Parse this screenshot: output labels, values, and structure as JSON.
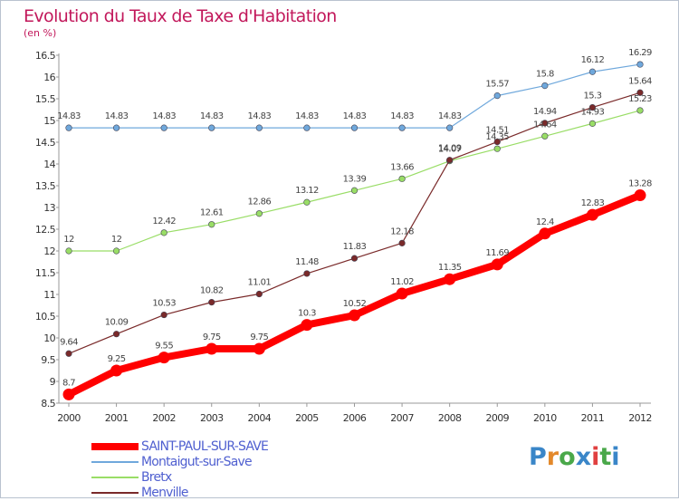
{
  "title": "Evolution du Taux de Taxe d'Habitation",
  "unit": "(en %)",
  "logo": {
    "text": "Proxiti",
    "colors": [
      "#3a86c8",
      "#e3892b",
      "#4aa84a",
      "#3a86c8",
      "#e04040",
      "#4aa84a",
      "#3a86c8"
    ]
  },
  "chart_data": {
    "type": "line",
    "title": "Evolution du Taux de Taxe d'Habitation",
    "ylabel": "(en %)",
    "xlabel": "",
    "x": [
      "2000",
      "2001",
      "2002",
      "2003",
      "2004",
      "2005",
      "2006",
      "2007",
      "2008",
      "2009",
      "2010",
      "2011",
      "2012"
    ],
    "yticks": [
      "8.5",
      "9",
      "9.5",
      "10",
      "10.5",
      "11",
      "11.5",
      "12",
      "12.5",
      "13",
      "13.5",
      "14",
      "14.5",
      "15",
      "15.5",
      "16",
      "16.5"
    ],
    "ylim": [
      8.5,
      16.5
    ],
    "grid": false,
    "legend_position": "bottom-left",
    "series": [
      {
        "name": "SAINT-PAUL-SUR-SAVE",
        "color": "#ff0000",
        "values": [
          8.7,
          9.25,
          9.55,
          9.75,
          9.75,
          10.3,
          10.52,
          11.02,
          11.35,
          11.69,
          12.4,
          12.83,
          13.28
        ],
        "labels": [
          "8.7",
          "9.25",
          "9.55",
          "9.75",
          "9.75",
          "10.3",
          "10.52",
          "11.02",
          "11.35",
          "11.69",
          "12.4",
          "12.83",
          "13.28"
        ]
      },
      {
        "name": "Montaigut-sur-Save",
        "color": "#6fa8dc",
        "values": [
          14.83,
          14.83,
          14.83,
          14.83,
          14.83,
          14.83,
          14.83,
          14.83,
          14.83,
          15.57,
          15.8,
          16.12,
          16.29
        ],
        "labels": [
          "14.83",
          "14.83",
          "14.83",
          "14.83",
          "14.83",
          "14.83",
          "14.83",
          "14.83",
          "14.83",
          "15.57",
          "15.8",
          "16.12",
          "16.29"
        ]
      },
      {
        "name": "Bretx",
        "color": "#99dd66",
        "values": [
          12,
          12,
          12.42,
          12.61,
          12.86,
          13.12,
          13.39,
          13.66,
          14.07,
          14.35,
          14.64,
          14.93,
          15.23
        ],
        "labels": [
          "12",
          "12",
          "12.42",
          "12.61",
          "12.86",
          "13.12",
          "13.39",
          "13.66",
          "14.07",
          "14.35",
          "14.64",
          "14.93",
          "15.23"
        ]
      },
      {
        "name": "Menville",
        "color": "#7a2a2a",
        "values": [
          9.64,
          10.09,
          10.53,
          10.82,
          11.01,
          11.48,
          11.83,
          12.18,
          14.09,
          14.51,
          14.94,
          15.3,
          15.64
        ],
        "labels": [
          "9.64",
          "10.09",
          "10.53",
          "10.82",
          "11.01",
          "11.48",
          "11.83",
          "12.18",
          "14.09",
          "14.51",
          "14.94",
          "15.3",
          "15.64"
        ]
      }
    ]
  }
}
